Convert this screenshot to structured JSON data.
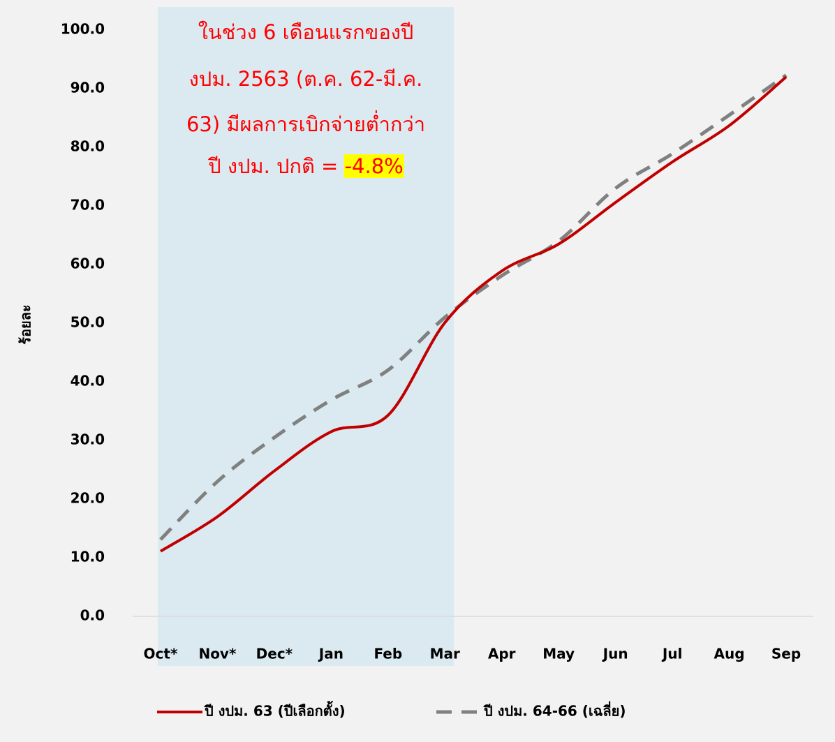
{
  "chart_data": {
    "type": "line",
    "y_axis_label": "ร้อยละ",
    "annotation": [
      "ในช่วง 6 เดือนแรกของปี",
      "งปม. 2563 (ต.ค. 62-มี.ค.",
      "63) มีผลการเบิกจ่ายต่ำกว่า",
      "ปี งปม. ปกติ = "
    ],
    "annotation_highlight": "-4.8%",
    "categories": [
      "Oct*",
      "Nov*",
      "Dec*",
      "Jan",
      "Feb",
      "Mar",
      "Apr",
      "May",
      "Jun",
      "Jul",
      "Aug",
      "Sep"
    ],
    "series": [
      {
        "name": "ปี งปม. 63 (ปีเลือกตั้ง)",
        "color": "#c00000",
        "dashed": false,
        "values": [
          11.1,
          17.0,
          24.8,
          31.5,
          34.3,
          50.1,
          58.9,
          63.5,
          70.6,
          77.5,
          83.7,
          92.0
        ]
      },
      {
        "name": "ปี งปม. 64-66 (เฉลี่ย)",
        "color": "#808080",
        "dashed": true,
        "values": [
          13.1,
          23.0,
          30.5,
          36.9,
          42.0,
          51.0,
          58.1,
          64.0,
          73.0,
          78.9,
          85.5,
          92.3
        ]
      }
    ],
    "ylim": [
      0,
      100
    ],
    "yticks": [
      {
        "value": 0,
        "label": "0.0"
      },
      {
        "value": 10,
        "label": "10.0"
      },
      {
        "value": 20,
        "label": "20.0"
      },
      {
        "value": 30,
        "label": "30.0"
      },
      {
        "value": 40,
        "label": "40.0"
      },
      {
        "value": 50,
        "label": "50.0"
      },
      {
        "value": 60,
        "label": "60.0"
      },
      {
        "value": 70,
        "label": "70.0"
      },
      {
        "value": 80,
        "label": "80.0"
      },
      {
        "value": 90,
        "label": "90.0"
      },
      {
        "value": 100,
        "label": "100.0"
      }
    ],
    "grid": false,
    "legend": "bottom"
  }
}
